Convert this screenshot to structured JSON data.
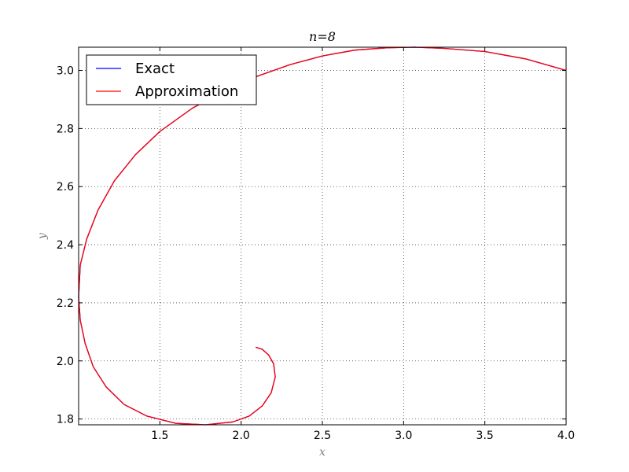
{
  "chart_data": {
    "type": "line",
    "title": "n=8",
    "xlabel": "x",
    "ylabel": "y",
    "xlim": [
      1.0,
      4.0
    ],
    "ylim": [
      1.78,
      3.08
    ],
    "xticks": [
      "1.5",
      "2.0",
      "2.5",
      "3.0",
      "3.5",
      "4.0"
    ],
    "yticks": [
      "1.8",
      "2.0",
      "2.2",
      "2.4",
      "2.6",
      "2.8",
      "3.0"
    ],
    "grid": true,
    "legend_position": "top-left",
    "series": [
      {
        "name": "Exact",
        "color": "#0000ff",
        "points": [
          [
            4.0,
            3.0
          ],
          [
            3.75,
            3.04
          ],
          [
            3.5,
            3.065
          ],
          [
            3.25,
            3.076
          ],
          [
            3.07,
            3.08
          ],
          [
            2.9,
            3.078
          ],
          [
            2.7,
            3.07
          ],
          [
            2.5,
            3.05
          ],
          [
            2.3,
            3.02
          ],
          [
            2.1,
            2.98
          ],
          [
            1.9,
            2.93
          ],
          [
            1.7,
            2.87
          ],
          [
            1.5,
            2.79
          ],
          [
            1.35,
            2.71
          ],
          [
            1.22,
            2.62
          ],
          [
            1.12,
            2.52
          ],
          [
            1.05,
            2.42
          ],
          [
            1.01,
            2.33
          ],
          [
            1.0,
            2.22
          ],
          [
            1.01,
            2.14
          ],
          [
            1.04,
            2.06
          ],
          [
            1.09,
            1.98
          ],
          [
            1.17,
            1.91
          ],
          [
            1.28,
            1.85
          ],
          [
            1.42,
            1.81
          ],
          [
            1.6,
            1.785
          ],
          [
            1.78,
            1.78
          ],
          [
            1.95,
            1.79
          ],
          [
            2.05,
            1.81
          ],
          [
            2.13,
            1.845
          ],
          [
            2.185,
            1.89
          ],
          [
            2.21,
            1.945
          ],
          [
            2.2,
            1.99
          ],
          [
            2.17,
            2.02
          ],
          [
            2.13,
            2.04
          ],
          [
            2.09,
            2.047
          ]
        ]
      },
      {
        "name": "Approximation",
        "color": "#ff0000",
        "points": [
          [
            4.0,
            3.0
          ],
          [
            3.75,
            3.04
          ],
          [
            3.5,
            3.065
          ],
          [
            3.25,
            3.076
          ],
          [
            3.07,
            3.08
          ],
          [
            2.9,
            3.078
          ],
          [
            2.7,
            3.07
          ],
          [
            2.5,
            3.05
          ],
          [
            2.3,
            3.02
          ],
          [
            2.1,
            2.98
          ],
          [
            1.9,
            2.93
          ],
          [
            1.7,
            2.87
          ],
          [
            1.5,
            2.79
          ],
          [
            1.35,
            2.71
          ],
          [
            1.22,
            2.62
          ],
          [
            1.12,
            2.52
          ],
          [
            1.05,
            2.42
          ],
          [
            1.01,
            2.33
          ],
          [
            1.0,
            2.22
          ],
          [
            1.01,
            2.14
          ],
          [
            1.04,
            2.06
          ],
          [
            1.09,
            1.98
          ],
          [
            1.17,
            1.91
          ],
          [
            1.28,
            1.85
          ],
          [
            1.42,
            1.81
          ],
          [
            1.6,
            1.785
          ],
          [
            1.78,
            1.78
          ],
          [
            1.95,
            1.79
          ],
          [
            2.05,
            1.81
          ],
          [
            2.13,
            1.845
          ],
          [
            2.185,
            1.89
          ],
          [
            2.21,
            1.945
          ],
          [
            2.2,
            1.99
          ],
          [
            2.17,
            2.02
          ],
          [
            2.13,
            2.04
          ],
          [
            2.09,
            2.047
          ]
        ]
      }
    ]
  }
}
